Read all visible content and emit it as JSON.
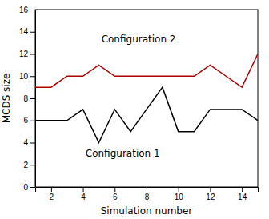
{
  "chart_data": {
    "type": "line",
    "xlabel": "Simulation number",
    "ylabel": "MCDS size",
    "x": [
      1,
      2,
      3,
      4,
      5,
      6,
      7,
      8,
      9,
      10,
      11,
      12,
      13,
      14,
      15
    ],
    "series": [
      {
        "color": "#000000",
        "values": [
          6,
          6,
          6,
          7,
          4,
          7,
          5,
          7,
          9,
          5,
          5,
          7,
          7,
          7,
          6
        ]
      },
      {
        "color": "#aa0000",
        "values": [
          9,
          9,
          10,
          10,
          11,
          10,
          10,
          10,
          10,
          10,
          10,
          11,
          10,
          9,
          12
        ]
      }
    ],
    "annotations": [
      {
        "text": "Configuration 2",
        "x": 7.5,
        "y": 12.8
      },
      {
        "text": "Configuration 1",
        "x": 6.5,
        "y": 2.5
      }
    ],
    "xlim": [
      1,
      15
    ],
    "ylim": [
      0,
      16
    ],
    "xticks": [
      2,
      4,
      6,
      8,
      10,
      12,
      14
    ],
    "yticks": [
      0,
      2,
      4,
      6,
      8,
      10,
      12,
      14,
      16
    ],
    "grid": false
  }
}
